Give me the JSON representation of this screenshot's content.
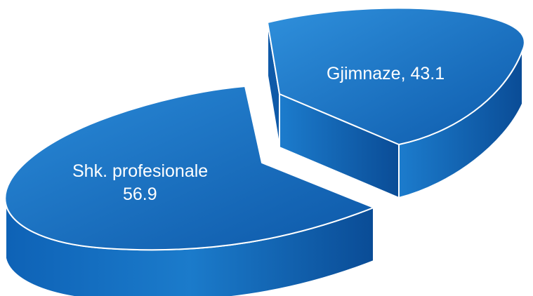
{
  "chart_data": {
    "type": "pie",
    "style": "3d-exploded",
    "title": "",
    "slices": [
      {
        "name": "Gjimnaze",
        "value": 43.1,
        "label_lines": [
          "Gjimnaze, 43.1"
        ]
      },
      {
        "name": "Shk. profesionale",
        "value": 56.9,
        "label_lines": [
          "Shk. profesionale",
          "56.9"
        ]
      }
    ],
    "colors": {
      "top_light": "#2b8ad6",
      "top_dark": "#0f5fb1",
      "side_light": "#1f7ccc",
      "side_dark": "#0a4f9b",
      "edge": "#ffffff"
    }
  }
}
